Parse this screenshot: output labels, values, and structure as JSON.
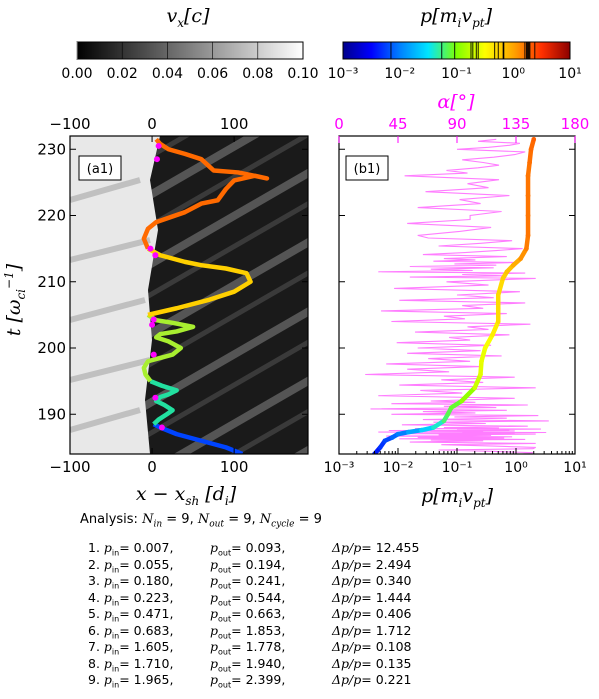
{
  "colorbars": {
    "vx": {
      "label": "v_x[c]",
      "ticks": [
        "0.00",
        "0.02",
        "0.04",
        "0.06",
        "0.08",
        "0.10"
      ],
      "range": [
        0.0,
        0.1
      ],
      "colors": [
        "#000000",
        "#ffffff"
      ]
    },
    "p": {
      "label": "p[m_i v_pt]",
      "ticks": [
        "10⁻³",
        "10⁻²",
        "10⁻¹",
        "10⁰",
        "10¹"
      ],
      "range": [
        0.001,
        10
      ],
      "scale": "log",
      "colors": [
        "#00008b",
        "#0000ff",
        "#0080ff",
        "#00e5ff",
        "#7fff00",
        "#ffff00",
        "#ffa500",
        "#ff3000",
        "#8b0000"
      ]
    }
  },
  "panel_a": {
    "tag": "(a1)",
    "xlabel": "x − x_sh [d_i]",
    "ylabel": "t [ω_ci⁻¹]",
    "x_ticks_bottom": [
      "−100",
      "0",
      "100"
    ],
    "x_ticks_top": [
      "−100",
      "0",
      "100"
    ],
    "y_ticks": [
      "190",
      "200",
      "210",
      "220",
      "230"
    ]
  },
  "panel_b": {
    "tag": "(b1)",
    "xlabel": "p[m_i v_pt]",
    "top_axis_label": "α[°]",
    "top_axis_color": "#ff00ff",
    "x_ticks_bottom": [
      "10⁻³",
      "10⁻²",
      "10⁻¹",
      "10⁰",
      "10¹"
    ],
    "x_ticks_top": [
      "0",
      "45",
      "90",
      "135",
      "180"
    ]
  },
  "chart_data": [
    {
      "type": "line",
      "panel": "a1",
      "xlim": [
        -100,
        190
      ],
      "ylim": [
        184,
        232
      ],
      "series": [
        {
          "x": [
            110,
            90,
            60,
            30,
            10,
            2
          ],
          "y": [
            184,
            185,
            186,
            187,
            188,
            188.5
          ]
        },
        {
          "x": [
            2,
            8,
            18,
            25,
            15,
            5,
            10,
            20,
            30,
            12,
            -2
          ],
          "y": [
            188.5,
            189.2,
            190,
            190.6,
            191.4,
            192,
            192.6,
            193,
            193.6,
            194.3,
            195
          ]
        },
        {
          "x": [
            -2,
            -8,
            -10,
            -5,
            10,
            25,
            35,
            20,
            5,
            10,
            30,
            50,
            25,
            5,
            -5
          ],
          "y": [
            195,
            196,
            197,
            198,
            198.5,
            199,
            200,
            201,
            201.6,
            202.1,
            202.5,
            203.2,
            203.8,
            204.2,
            205
          ]
        },
        {
          "x": [
            -5,
            30,
            70,
            100,
            120,
            115,
            90,
            60,
            40,
            10,
            -5
          ],
          "y": [
            205,
            206,
            207.3,
            208.5,
            210,
            211.3,
            212,
            212.5,
            213,
            214,
            215
          ]
        },
        {
          "x": [
            -5,
            -10,
            -5,
            5,
            40,
            60,
            80,
            90,
            100,
            125,
            140,
            105,
            75,
            60,
            40,
            20,
            10,
            5
          ],
          "y": [
            215,
            216.5,
            218,
            219,
            220.5,
            221.8,
            222.3,
            224,
            225.3,
            226,
            225.6,
            226.5,
            226.8,
            228.5,
            229.3,
            230,
            230.8,
            231.5
          ]
        }
      ],
      "markers": {
        "x": [
          12,
          4,
          2,
          0,
          2,
          4,
          -2,
          6,
          8
        ],
        "y": [
          188,
          192.5,
          199,
          203.5,
          204.3,
          214,
          215,
          228.5,
          230.5
        ]
      }
    },
    {
      "type": "scatter",
      "panel": "b1",
      "xscale": "log",
      "xlim": [
        0.001,
        10
      ],
      "ylim": [
        184,
        232
      ],
      "momentum_x": [
        0.004,
        0.005,
        0.006,
        0.008,
        0.01,
        0.015,
        0.025,
        0.04,
        0.06,
        0.07,
        0.08,
        0.12,
        0.2,
        0.25,
        0.26,
        0.3,
        0.4,
        0.5,
        0.5,
        0.5,
        0.6,
        0.7,
        0.9,
        1.2,
        1.5,
        1.6,
        1.6,
        1.6,
        1.6,
        1.7,
        1.8,
        2.0
      ],
      "momentum_t": [
        184,
        185,
        186,
        186.5,
        187,
        187.3,
        187.6,
        188,
        189,
        190,
        191,
        192,
        194,
        196,
        198,
        200,
        202,
        204,
        206,
        208,
        210.5,
        211.5,
        212.5,
        213.5,
        215,
        217,
        220,
        223,
        226,
        228,
        230,
        231.5
      ],
      "pitch_angle_deg": [
        140,
        150,
        110,
        60,
        150,
        30,
        130,
        80,
        160,
        40,
        120,
        70,
        150,
        20,
        100,
        60,
        130,
        40,
        110,
        90,
        150,
        30,
        120,
        80,
        140,
        60,
        100,
        130,
        50,
        110,
        90,
        120
      ]
    }
  ],
  "analysis": {
    "text": "Analysis: N_in = 9, N_out = 9, N_cycle = 9",
    "results": [
      {
        "i": "1.",
        "pin": "= 0.007,",
        "pout": "= 0.093,",
        "dp": "= 12.455"
      },
      {
        "i": "2.",
        "pin": "= 0.055,",
        "pout": "= 0.194,",
        "dp": "= 2.494"
      },
      {
        "i": "3.",
        "pin": "= 0.180,",
        "pout": "= 0.241,",
        "dp": "= 0.340"
      },
      {
        "i": "4.",
        "pin": "= 0.223,",
        "pout": "= 0.544,",
        "dp": "= 1.444"
      },
      {
        "i": "5.",
        "pin": "= 0.471,",
        "pout": "= 0.663,",
        "dp": "= 0.406"
      },
      {
        "i": "6.",
        "pin": "= 0.683,",
        "pout": "= 1.853,",
        "dp": "= 1.712"
      },
      {
        "i": "7.",
        "pin": "= 1.605,",
        "pout": "= 1.778,",
        "dp": "= 0.108"
      },
      {
        "i": "8.",
        "pin": "= 1.710,",
        "pout": "= 1.940,",
        "dp": "= 0.135"
      },
      {
        "i": "9.",
        "pin": "= 1.965,",
        "pout": "= 2.399,",
        "dp": "= 0.221"
      }
    ]
  }
}
